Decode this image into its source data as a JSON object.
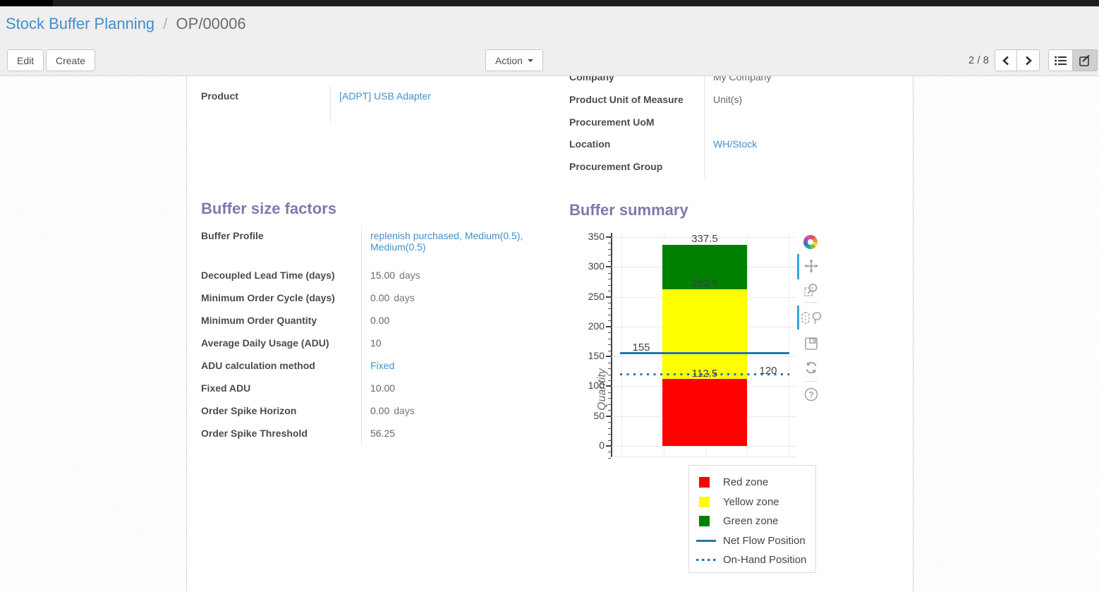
{
  "breadcrumb": {
    "parent": "Stock Buffer Planning",
    "separator": "/",
    "current": "OP/00006"
  },
  "control_panel": {
    "edit_label": "Edit",
    "create_label": "Create",
    "action_label": "Action",
    "pager": "2 / 8",
    "view_switcher": [
      "list",
      "form"
    ],
    "active_view": "form"
  },
  "sheet": {
    "company_cut_label": "Company",
    "company_cut_value": "My Company",
    "fields_left": [
      {
        "label": "Product",
        "value": "[ADPT] USB Adapter",
        "link": true
      }
    ],
    "fields_right": [
      {
        "label": "Product Unit of Measure",
        "value": "Unit(s)",
        "link": false
      },
      {
        "label": "Procurement UoM",
        "value": "",
        "link": false
      },
      {
        "label": "Location",
        "value": "WH/Stock",
        "link": true
      },
      {
        "label": "Procurement Group",
        "value": "",
        "link": false
      }
    ],
    "factors_title": "Buffer size factors",
    "summary_title": "Buffer summary",
    "factors": [
      {
        "label": "Buffer Profile",
        "value": "replenish purchased, Medium(0.5), Medium(0.5)",
        "link": true,
        "tall": true
      },
      {
        "label": "Decoupled Lead Time (days)",
        "value": "15.00",
        "unit": "days"
      },
      {
        "label": "Minimum Order Cycle (days)",
        "value": "0.00",
        "unit": "days"
      },
      {
        "label": "Minimum Order Quantity",
        "value": "0.00"
      },
      {
        "label": "Average Daily Usage (ADU)",
        "value": "10"
      },
      {
        "label": "ADU calculation method",
        "value": "Fixed",
        "link": true
      },
      {
        "label": "Fixed ADU",
        "value": "10.00"
      },
      {
        "label": "Order Spike Horizon",
        "value": "0.00",
        "unit": "days"
      },
      {
        "label": "Order Spike Threshold",
        "value": "56.25"
      }
    ]
  },
  "chart_data": {
    "type": "bar",
    "title": "Buffer summary",
    "xlabel": "",
    "ylabel": "Quantity",
    "ylim": [
      0,
      350
    ],
    "yticks": [
      0,
      50,
      100,
      150,
      200,
      250,
      300,
      350
    ],
    "grid": true,
    "legend_position": "bottom-right",
    "series": [
      {
        "name": "Red zone",
        "type": "bar",
        "color": "#ff0000",
        "from": 0,
        "to": 112.5
      },
      {
        "name": "Yellow zone",
        "type": "bar",
        "color": "#ffff00",
        "from": 112.5,
        "to": 262.5
      },
      {
        "name": "Green zone",
        "type": "bar",
        "color": "#008000",
        "from": 262.5,
        "to": 337.5
      },
      {
        "name": "Net Flow Position",
        "type": "line",
        "style": "solid",
        "color": "#1f77b4",
        "value": 155
      },
      {
        "name": "On-Hand Position",
        "type": "line",
        "style": "dotted",
        "color": "#1f77b4",
        "value": 120
      }
    ],
    "annotations": [
      {
        "text": "337.5",
        "value": 337.5,
        "pos": "bar-top"
      },
      {
        "text": "262.5",
        "value": 262.5,
        "pos": "boundary"
      },
      {
        "text": "155",
        "value": 155,
        "pos": "line-left"
      },
      {
        "text": "112.5",
        "value": 112.5,
        "pos": "boundary-low"
      },
      {
        "text": "120",
        "value": 120,
        "pos": "line-right"
      }
    ],
    "legend": [
      {
        "label": "Red zone",
        "swatch": "square",
        "color": "#ff0000"
      },
      {
        "label": "Yellow zone",
        "swatch": "square",
        "color": "#ffff00"
      },
      {
        "label": "Green zone",
        "swatch": "square",
        "color": "#008000"
      },
      {
        "label": "Net Flow Position",
        "swatch": "line-solid",
        "color": "#1f77b4"
      },
      {
        "label": "On-Hand Position",
        "swatch": "line-dotted",
        "color": "#1f77b4"
      }
    ],
    "modebar_icons": [
      "plotly-logo",
      "pan",
      "box-zoom",
      "box-select",
      "lasso-select",
      "save",
      "reset-axes",
      "help"
    ]
  }
}
